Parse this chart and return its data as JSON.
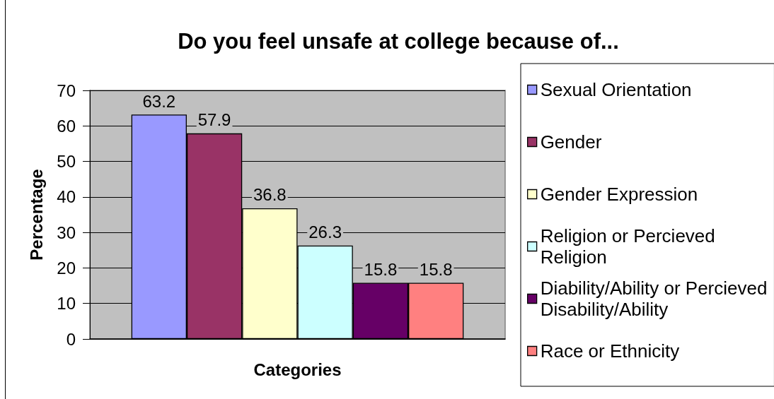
{
  "chart_data": {
    "type": "bar",
    "title": "Do you feel unsafe at college because of...",
    "xlabel": "Categories",
    "ylabel": "Percentage",
    "categories": [
      null
    ],
    "series": [
      {
        "name": "Sexual Orientation",
        "color": "#9999ff",
        "values": [
          63.2
        ]
      },
      {
        "name": "Gender",
        "color": "#993366",
        "values": [
          57.9
        ]
      },
      {
        "name": "Gender Expression",
        "color": "#ffffcc",
        "values": [
          36.8
        ]
      },
      {
        "name": "Religion or Percieved Religion",
        "color": "#ccffff",
        "values": [
          26.3
        ]
      },
      {
        "name": "Diability/Ability or Percieved Disability/Ability",
        "color": "#660066",
        "values": [
          15.8
        ]
      },
      {
        "name": "Race or Ethnicity",
        "color": "#ff8080",
        "values": [
          15.8
        ]
      }
    ],
    "ylim": [
      0,
      70
    ],
    "yticks": [
      0,
      10,
      20,
      30,
      40,
      50,
      60,
      70
    ],
    "grid": "y",
    "legend": "right",
    "data_labels": true,
    "tick_labels": "y"
  }
}
